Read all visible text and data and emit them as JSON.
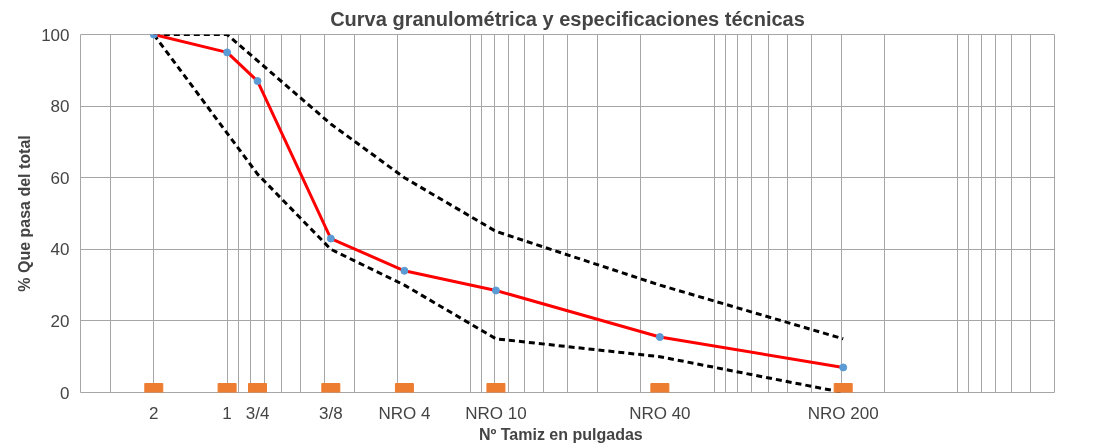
{
  "chart_data": {
    "type": "line",
    "title": "Curva granulométrica y especificaciones técnicas",
    "xlabel": "Nº  Tamiz  en  pulgadas",
    "ylabel": "% Que pasa del total",
    "log": "x",
    "xlim": [
      4,
      0.0004
    ],
    "ylim": [
      0,
      100
    ],
    "xticks": [
      2,
      1,
      {
        "value": 0.75,
        "label": "3/4"
      },
      {
        "value": 0.375,
        "label": "3/8"
      },
      {
        "value": 0.187,
        "label": "NRO 4"
      },
      {
        "value": 0.0787,
        "label": "NRO 10"
      },
      {
        "value": 0.0167,
        "label": "NRO 40"
      },
      {
        "value": 0.00295,
        "label": "NRO 200"
      }
    ],
    "yticks": [
      0,
      20,
      40,
      60,
      80,
      100
    ],
    "grid": true,
    "series": [
      {
        "line_style": "dashed",
        "color": "#000000",
        "x": [
          2,
          1,
          0.375,
          0.187,
          0.0787,
          0.0167,
          0.00295
        ],
        "values": [
          100,
          100,
          75,
          60,
          45,
          30,
          15
        ]
      },
      {
        "line_style": "dashed",
        "color": "#000000",
        "x": [
          2,
          0.75,
          0.375,
          0.187,
          0.0787,
          0.0167,
          0.00295
        ],
        "values": [
          100,
          61,
          40,
          30,
          15,
          10,
          0
        ]
      },
      {
        "line_style": "solid",
        "color": "#ff0000",
        "x": [
          2,
          1,
          0.75,
          0.375,
          0.187,
          0.0787,
          0.0167,
          0.00295
        ],
        "values": [
          100,
          95,
          87,
          43,
          34,
          28.5,
          15.5,
          7
        ]
      },
      {
        "type": "scatter",
        "marker": "circle",
        "color": "#5b9bd5",
        "x": [
          2,
          1,
          0.75,
          0.375,
          0.187,
          0.0787,
          0.0167,
          0.00295
        ],
        "values": [
          100,
          95,
          87,
          43,
          34,
          28.5,
          15.5,
          7
        ]
      },
      {
        "type": "scatter",
        "marker": "square",
        "color": "#ed7d31",
        "x": [
          2,
          1,
          0.75,
          0.375,
          0.187,
          0.0787,
          0.0167,
          0.00295
        ],
        "values": [
          0,
          0,
          0,
          0,
          0,
          0,
          0,
          0
        ]
      }
    ]
  }
}
